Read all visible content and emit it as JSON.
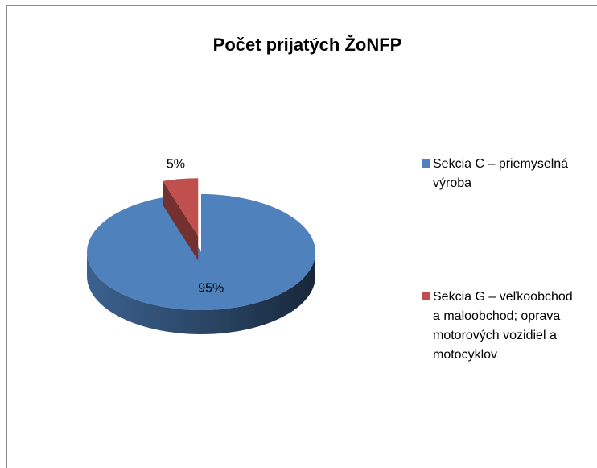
{
  "chart_data": {
    "type": "pie",
    "title": "Počet prijatých ŽoNFP",
    "series": [
      {
        "name": "Sekcia C – priemyselná výroba",
        "color": "#4f81bd"
      },
      {
        "name": "Sekcia G – veľkoobchod a maloobchod; oprava motorových vozidiel a motocyklov",
        "color": "#c0504d"
      }
    ],
    "values": [
      95,
      5
    ],
    "value_labels": [
      "95%",
      "5%"
    ],
    "legend": "right"
  }
}
